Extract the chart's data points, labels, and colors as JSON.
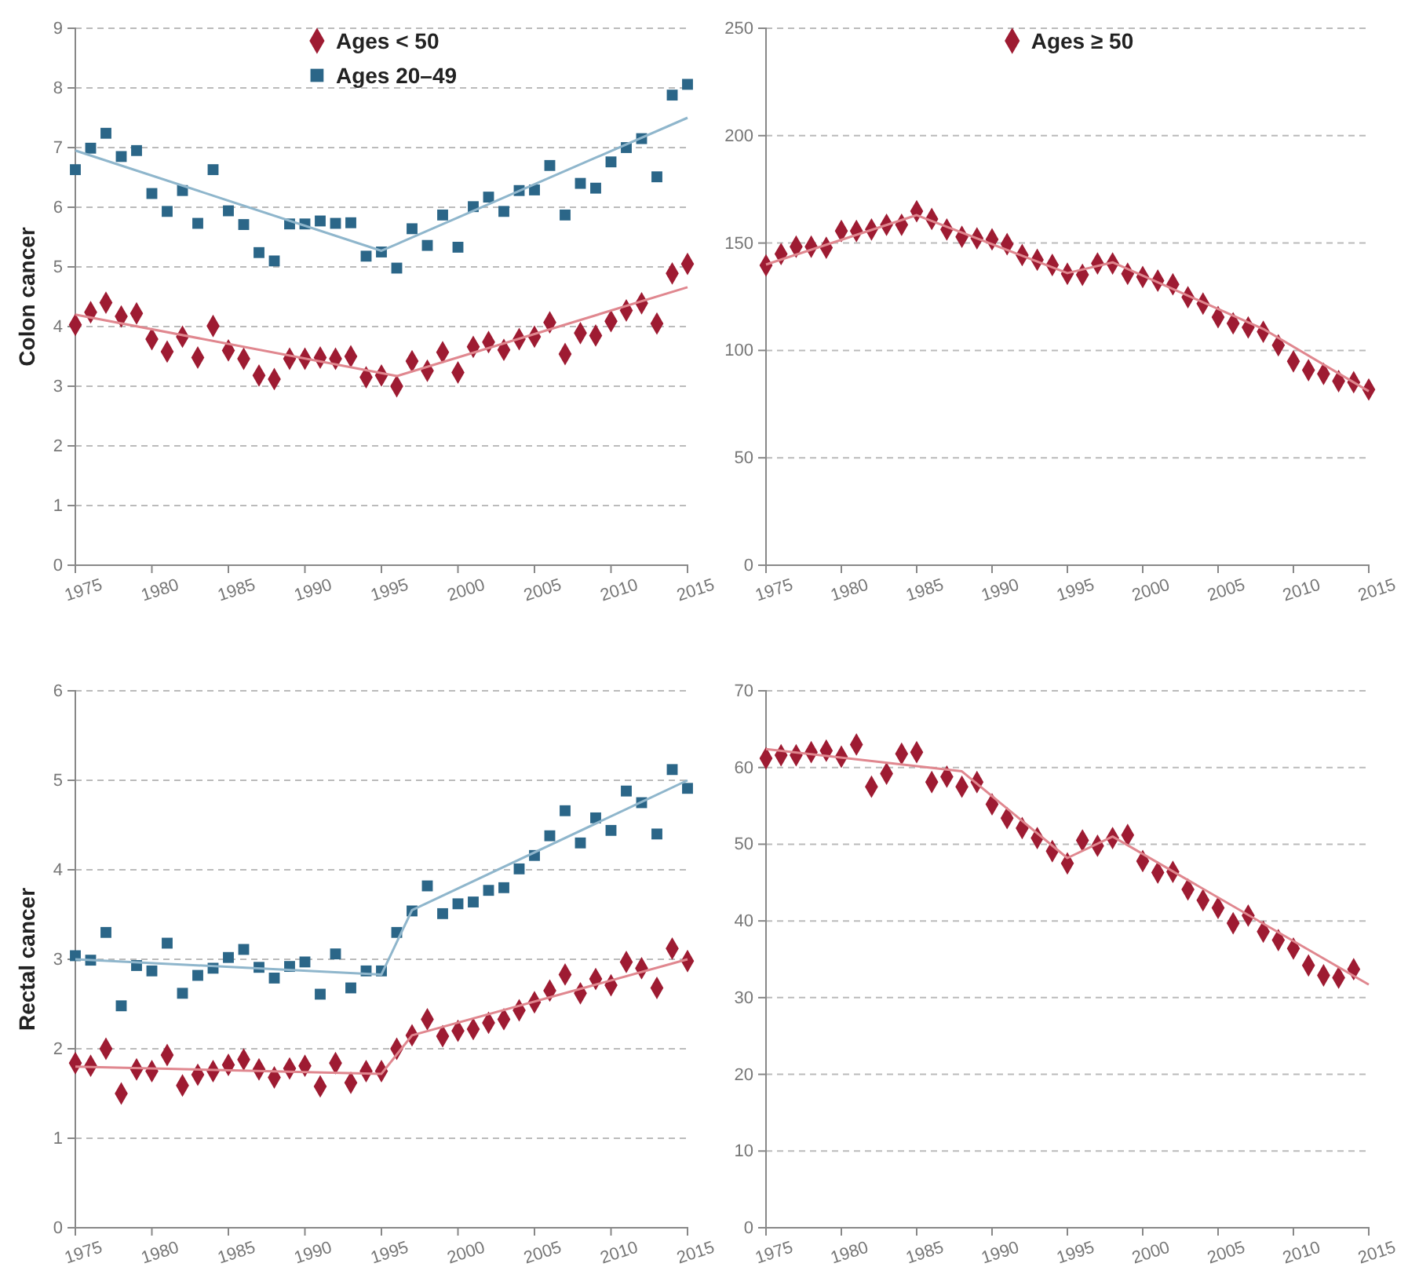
{
  "chart_data": [
    {
      "type": "scatter",
      "ylabel": "Colon cancer",
      "x": [
        1975,
        1976,
        1977,
        1978,
        1979,
        1980,
        1981,
        1982,
        1983,
        1984,
        1985,
        1986,
        1987,
        1988,
        1989,
        1990,
        1991,
        1992,
        1993,
        1994,
        1995,
        1996,
        1997,
        1998,
        1999,
        2000,
        2001,
        2002,
        2003,
        2004,
        2005,
        2006,
        2007,
        2008,
        2009,
        2010,
        2011,
        2012,
        2013,
        2014,
        2015
      ],
      "xlim": [
        1975,
        2015
      ],
      "xticks": [
        1975,
        1980,
        1985,
        1990,
        1995,
        2000,
        2005,
        2010,
        2015
      ],
      "ylim": [
        0,
        9
      ],
      "yticks": [
        0,
        1,
        2,
        3,
        4,
        5,
        6,
        7,
        8,
        9
      ],
      "grid": "y",
      "legend": "top",
      "series": [
        {
          "name": "Ages < 50",
          "color": "#9e1b32",
          "marker": "diamond",
          "values": [
            4.03,
            4.24,
            4.4,
            4.17,
            4.22,
            3.79,
            3.58,
            3.83,
            3.48,
            4.01,
            3.6,
            3.46,
            3.18,
            3.12,
            3.46,
            3.46,
            3.48,
            3.46,
            3.5,
            3.15,
            3.18,
            3.0,
            3.42,
            3.26,
            3.57,
            3.23,
            3.66,
            3.74,
            3.61,
            3.79,
            3.83,
            4.07,
            3.54,
            3.89,
            3.85,
            4.09,
            4.27,
            4.39,
            4.05,
            4.89,
            5.05
          ]
        },
        {
          "name": "Ages 20–49",
          "color": "#2b6688",
          "marker": "square",
          "values": [
            6.63,
            6.99,
            7.24,
            6.85,
            6.95,
            6.23,
            5.93,
            6.28,
            5.73,
            6.63,
            5.94,
            5.71,
            5.24,
            5.1,
            5.72,
            5.72,
            5.77,
            5.73,
            5.74,
            5.18,
            5.25,
            4.98,
            5.64,
            5.36,
            5.87,
            5.33,
            6.01,
            6.17,
            5.93,
            6.28,
            6.29,
            6.7,
            5.87,
            6.4,
            6.32,
            6.76,
            7.0,
            7.15,
            6.51,
            7.88,
            8.06
          ]
        },
        {
          "type": "line",
          "color": "#e0878f",
          "marker": "none",
          "x": [
            1975,
            1996,
            2015
          ],
          "values": [
            4.2,
            3.17,
            4.66
          ]
        },
        {
          "type": "line",
          "color": "#8fb6cc",
          "marker": "none",
          "x": [
            1975,
            1995,
            2015
          ],
          "values": [
            6.95,
            5.27,
            7.5
          ]
        }
      ]
    },
    {
      "type": "scatter",
      "x": [
        1975,
        1976,
        1977,
        1978,
        1979,
        1980,
        1981,
        1982,
        1983,
        1984,
        1985,
        1986,
        1987,
        1988,
        1989,
        1990,
        1991,
        1992,
        1993,
        1994,
        1995,
        1996,
        1997,
        1998,
        1999,
        2000,
        2001,
        2002,
        2003,
        2004,
        2005,
        2006,
        2007,
        2008,
        2009,
        2010,
        2011,
        2012,
        2013,
        2014,
        2015
      ],
      "xlim": [
        1975,
        2015
      ],
      "xticks": [
        1975,
        1980,
        1985,
        1990,
        1995,
        2000,
        2005,
        2010,
        2015
      ],
      "ylim": [
        0,
        250
      ],
      "yticks": [
        0,
        50,
        100,
        150,
        200,
        250
      ],
      "grid": "y",
      "legend": "top",
      "series": [
        {
          "name": "Ages ≥ 50",
          "color": "#9e1b32",
          "marker": "diamond",
          "values": [
            139.6,
            144.9,
            148.3,
            148.3,
            147.8,
            155.6,
            155.6,
            156.3,
            158.5,
            158.5,
            164.8,
            161.2,
            156.3,
            152.9,
            152.2,
            151.7,
            149.5,
            144.4,
            142.2,
            139.8,
            135.7,
            135.2,
            140.5,
            140.5,
            135.7,
            134.2,
            132.5,
            130.8,
            124.8,
            121.8,
            115.5,
            112.6,
            110.7,
            108.7,
            102.4,
            94.9,
            90.8,
            89.1,
            85.7,
            85.2,
            81.8
          ]
        },
        {
          "type": "line",
          "color": "#e0878f",
          "marker": "none",
          "x": [
            1975,
            1985,
            1995,
            1998,
            2008,
            2015
          ],
          "values": [
            140,
            163,
            136,
            141,
            110,
            81
          ]
        }
      ]
    },
    {
      "type": "scatter",
      "ylabel": "Rectal cancer",
      "x": [
        1975,
        1976,
        1977,
        1978,
        1979,
        1980,
        1981,
        1982,
        1983,
        1984,
        1985,
        1986,
        1987,
        1988,
        1989,
        1990,
        1991,
        1992,
        1993,
        1994,
        1995,
        1996,
        1997,
        1998,
        1999,
        2000,
        2001,
        2002,
        2003,
        2004,
        2005,
        2006,
        2007,
        2008,
        2009,
        2010,
        2011,
        2012,
        2013,
        2014,
        2015
      ],
      "xlim": [
        1975,
        2015
      ],
      "xticks": [
        1975,
        1980,
        1985,
        1990,
        1995,
        2000,
        2005,
        2010,
        2015
      ],
      "ylim": [
        0,
        6
      ],
      "yticks": [
        0,
        1,
        2,
        3,
        4,
        5,
        6
      ],
      "grid": "y",
      "series": [
        {
          "color": "#9e1b32",
          "marker": "diamond",
          "values": [
            1.84,
            1.81,
            2.0,
            1.5,
            1.77,
            1.75,
            1.93,
            1.59,
            1.71,
            1.75,
            1.82,
            1.88,
            1.77,
            1.68,
            1.78,
            1.81,
            1.58,
            1.84,
            1.62,
            1.75,
            1.75,
            2.0,
            2.15,
            2.33,
            2.14,
            2.2,
            2.22,
            2.29,
            2.33,
            2.43,
            2.52,
            2.65,
            2.83,
            2.62,
            2.78,
            2.71,
            2.97,
            2.9,
            2.68,
            3.12,
            2.98
          ]
        },
        {
          "color": "#2b6688",
          "marker": "square",
          "values": [
            3.04,
            2.99,
            3.3,
            2.48,
            2.93,
            2.87,
            3.18,
            2.62,
            2.82,
            2.9,
            3.02,
            3.11,
            2.91,
            2.79,
            2.92,
            2.97,
            2.61,
            3.06,
            2.68,
            2.87,
            2.87,
            3.3,
            3.54,
            3.82,
            3.51,
            3.62,
            3.64,
            3.77,
            3.8,
            4.01,
            4.16,
            4.38,
            4.66,
            4.3,
            4.58,
            4.44,
            4.88,
            4.75,
            4.4,
            5.12,
            4.91
          ]
        },
        {
          "type": "line",
          "color": "#e0878f",
          "marker": "none",
          "x": [
            1975,
            1995,
            1997,
            2015
          ],
          "values": [
            1.8,
            1.72,
            2.15,
            3.0
          ]
        },
        {
          "type": "line",
          "color": "#8fb6cc",
          "marker": "none",
          "x": [
            1975,
            1995,
            1997,
            2015
          ],
          "values": [
            3.0,
            2.83,
            3.55,
            5.0
          ]
        }
      ]
    },
    {
      "type": "scatter",
      "x": [
        1975,
        1976,
        1977,
        1978,
        1979,
        1980,
        1981,
        1982,
        1983,
        1984,
        1985,
        1986,
        1987,
        1988,
        1989,
        1990,
        1991,
        1992,
        1993,
        1994,
        1995,
        1996,
        1997,
        1998,
        1999,
        2000,
        2001,
        2002,
        2003,
        2004,
        2005,
        2006,
        2007,
        2008,
        2009,
        2010,
        2011,
        2012,
        2013,
        2014
      ],
      "xlim": [
        1975,
        2015
      ],
      "xticks": [
        1975,
        1980,
        1985,
        1990,
        1995,
        2000,
        2005,
        2010,
        2015
      ],
      "ylim": [
        0,
        70
      ],
      "yticks": [
        0,
        10,
        20,
        30,
        40,
        50,
        60,
        70
      ],
      "grid": "y",
      "series": [
        {
          "color": "#9e1b32",
          "marker": "diamond",
          "values": [
            61.2,
            61.6,
            61.6,
            62.0,
            62.2,
            61.4,
            63.0,
            57.5,
            59.2,
            61.8,
            62.0,
            58.1,
            58.8,
            57.5,
            58.1,
            55.2,
            53.4,
            52.1,
            50.8,
            49.1,
            47.5,
            50.5,
            49.8,
            50.8,
            51.2,
            47.8,
            46.3,
            46.4,
            44.1,
            42.7,
            41.7,
            39.7,
            40.7,
            38.6,
            37.5,
            36.4,
            34.2,
            32.9,
            32.6,
            33.7
          ]
        },
        {
          "type": "line",
          "color": "#e0878f",
          "marker": "none",
          "x": [
            1975,
            1988,
            1995,
            1998,
            2015
          ],
          "values": [
            62.4,
            59.5,
            48.2,
            51,
            31.7
          ]
        }
      ]
    }
  ]
}
